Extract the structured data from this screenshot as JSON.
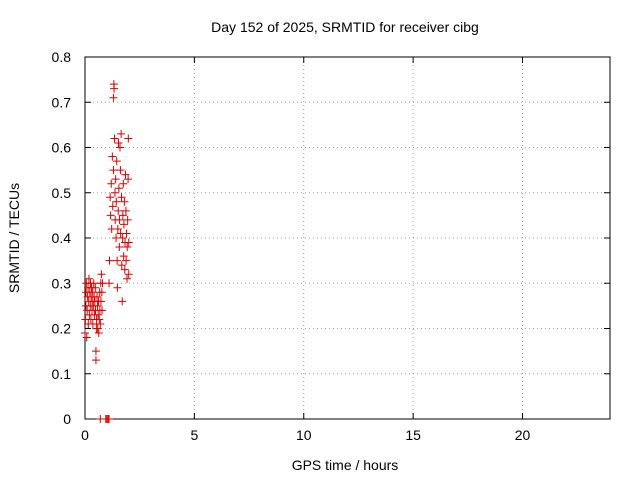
{
  "chart_data": {
    "type": "scatter",
    "title": "Day 152 of 2025, SRMTID for receiver cibg",
    "xlabel": "GPS time / hours",
    "ylabel": "SRMTID / TECUs",
    "xlim": [
      0,
      24
    ],
    "ylim": [
      0,
      0.8
    ],
    "xticks": [
      0,
      5,
      10,
      15,
      20
    ],
    "xtick_labels": [
      "0",
      "5",
      "10",
      "15",
      "20"
    ],
    "yticks": [
      0,
      0.1,
      0.2,
      0.3,
      0.4,
      0.5,
      0.6,
      0.7,
      0.8
    ],
    "ytick_labels": [
      "0",
      "0.1",
      "0.2",
      "0.3",
      "0.4",
      "0.5",
      "0.6",
      "0.7",
      "0.8"
    ],
    "grid": true,
    "marker": "plus",
    "color": "#dd0000",
    "series": [
      {
        "name": "cibg",
        "points": [
          [
            0.0,
            0.19
          ],
          [
            0.02,
            0.22
          ],
          [
            0.04,
            0.25
          ],
          [
            0.05,
            0.28
          ],
          [
            0.06,
            0.3
          ],
          [
            0.08,
            0.18
          ],
          [
            0.1,
            0.24
          ],
          [
            0.12,
            0.27
          ],
          [
            0.14,
            0.29
          ],
          [
            0.15,
            0.21
          ],
          [
            0.17,
            0.26
          ],
          [
            0.18,
            0.31
          ],
          [
            0.2,
            0.23
          ],
          [
            0.22,
            0.28
          ],
          [
            0.24,
            0.25
          ],
          [
            0.25,
            0.3
          ],
          [
            0.27,
            0.22
          ],
          [
            0.28,
            0.27
          ],
          [
            0.3,
            0.29
          ],
          [
            0.32,
            0.24
          ],
          [
            0.33,
            0.26
          ],
          [
            0.35,
            0.28
          ],
          [
            0.36,
            0.21
          ],
          [
            0.38,
            0.25
          ],
          [
            0.4,
            0.3
          ],
          [
            0.42,
            0.27
          ],
          [
            0.43,
            0.23
          ],
          [
            0.45,
            0.26
          ],
          [
            0.47,
            0.29
          ],
          [
            0.48,
            0.24
          ],
          [
            0.5,
            0.13
          ],
          [
            0.5,
            0.15
          ],
          [
            0.52,
            0.2
          ],
          [
            0.53,
            0.22
          ],
          [
            0.55,
            0.27
          ],
          [
            0.57,
            0.25
          ],
          [
            0.58,
            0.2
          ],
          [
            0.6,
            0.23
          ],
          [
            0.62,
            0.26
          ],
          [
            0.63,
            0.19
          ],
          [
            0.65,
            0.22
          ],
          [
            0.67,
            0.28
          ],
          [
            0.68,
            0.24
          ],
          [
            0.7,
            0.21
          ],
          [
            0.72,
            0.3
          ],
          [
            0.73,
            0.26
          ],
          [
            0.75,
            0.32
          ],
          [
            0.77,
            0.28
          ],
          [
            0.78,
            0.24
          ],
          [
            0.8,
            0.3
          ],
          [
            0.7,
            0.0
          ],
          [
            0.95,
            0.0
          ],
          [
            1.0,
            0.0
          ],
          [
            1.05,
            0.0
          ],
          [
            1.1,
            0.0
          ],
          [
            1.1,
            0.3
          ],
          [
            1.12,
            0.35
          ],
          [
            1.15,
            0.49
          ],
          [
            1.17,
            0.45
          ],
          [
            1.2,
            0.52
          ],
          [
            1.22,
            0.42
          ],
          [
            1.25,
            0.58
          ],
          [
            1.27,
            0.47
          ],
          [
            1.3,
            0.55
          ],
          [
            1.3,
            0.71
          ],
          [
            1.32,
            0.74
          ],
          [
            1.33,
            0.73
          ],
          [
            1.35,
            0.62
          ],
          [
            1.37,
            0.5
          ],
          [
            1.38,
            0.44
          ],
          [
            1.4,
            0.53
          ],
          [
            1.42,
            0.4
          ],
          [
            1.43,
            0.48
          ],
          [
            1.45,
            0.57
          ],
          [
            1.47,
            0.35
          ],
          [
            1.48,
            0.29
          ],
          [
            1.5,
            0.42
          ],
          [
            1.52,
            0.46
          ],
          [
            1.53,
            0.61
          ],
          [
            1.55,
            0.51
          ],
          [
            1.57,
            0.38
          ],
          [
            1.58,
            0.44
          ],
          [
            1.6,
            0.6
          ],
          [
            1.62,
            0.55
          ],
          [
            1.63,
            0.41
          ],
          [
            1.65,
            0.63
          ],
          [
            1.67,
            0.49
          ],
          [
            1.68,
            0.34
          ],
          [
            1.7,
            0.26
          ],
          [
            1.72,
            0.4
          ],
          [
            1.73,
            0.45
          ],
          [
            1.75,
            0.52
          ],
          [
            1.77,
            0.36
          ],
          [
            1.78,
            0.43
          ],
          [
            1.8,
            0.48
          ],
          [
            1.82,
            0.33
          ],
          [
            1.83,
            0.39
          ],
          [
            1.85,
            0.54
          ],
          [
            1.87,
            0.46
          ],
          [
            1.88,
            0.35
          ],
          [
            1.9,
            0.41
          ],
          [
            1.92,
            0.31
          ],
          [
            1.93,
            0.38
          ],
          [
            1.95,
            0.44
          ],
          [
            1.97,
            0.53
          ],
          [
            1.98,
            0.62
          ],
          [
            2.0,
            0.39
          ],
          [
            2.0,
            0.32
          ]
        ]
      }
    ]
  }
}
